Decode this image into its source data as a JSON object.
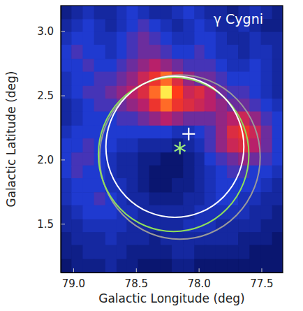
{
  "chart_data": {
    "type": "heatmap",
    "title": "γ Cygni",
    "xlabel": "Galactic Longitude (deg)",
    "ylabel": "Galactic Latitude (deg)",
    "xlim": [
      79.1,
      77.33
    ],
    "ylim": [
      1.12,
      3.2
    ],
    "xticks": [
      {
        "value": 79,
        "label": "79.0"
      },
      {
        "value": 78.5,
        "label": "78.5"
      },
      {
        "value": 78,
        "label": "78.0"
      },
      {
        "value": 77.5,
        "label": "77.5"
      }
    ],
    "yticks": [
      {
        "value": 1.5,
        "label": "1.5"
      },
      {
        "value": 2,
        "label": "2.0"
      },
      {
        "value": 2.5,
        "label": "2.5"
      },
      {
        "value": 3,
        "label": "3.0"
      }
    ],
    "cells": {
      "x": [
        79.06,
        78.97,
        78.88,
        78.79,
        78.7,
        78.61,
        78.53,
        78.44,
        78.35,
        78.26,
        78.17,
        78.08,
        77.99,
        77.91,
        77.82,
        77.73,
        77.64,
        77.55,
        77.46,
        77.37
      ],
      "y": [
        3.15,
        3.04,
        2.94,
        2.84,
        2.73,
        2.63,
        2.52,
        2.42,
        2.32,
        2.21,
        2.11,
        2.0,
        1.9,
        1.8,
        1.69,
        1.59,
        1.48,
        1.38,
        1.28,
        1.17
      ],
      "zlim": [
        0,
        1
      ],
      "z": [
        [
          0.25,
          0.3,
          0.35,
          0.3,
          0.3,
          0.35,
          0.4,
          0.35,
          0.3,
          0.3,
          0.35,
          0.4,
          0.35,
          0.3,
          0.3,
          0.25,
          0.3,
          0.35,
          0.3,
          0.25
        ],
        [
          0.3,
          0.35,
          0.4,
          0.35,
          0.3,
          0.35,
          0.4,
          0.45,
          0.4,
          0.35,
          0.3,
          0.35,
          0.4,
          0.35,
          0.3,
          0.3,
          0.35,
          0.3,
          0.25,
          0.25
        ],
        [
          0.35,
          0.4,
          0.4,
          0.35,
          0.35,
          0.4,
          0.45,
          0.5,
          0.45,
          0.4,
          0.35,
          0.35,
          0.4,
          0.4,
          0.35,
          0.3,
          0.3,
          0.35,
          0.3,
          0.3
        ],
        [
          0.4,
          0.45,
          0.4,
          0.4,
          0.35,
          0.4,
          0.45,
          0.5,
          0.5,
          0.45,
          0.4,
          0.4,
          0.45,
          0.4,
          0.35,
          0.35,
          0.3,
          0.35,
          0.35,
          0.3
        ],
        [
          0.4,
          0.4,
          0.45,
          0.4,
          0.4,
          0.45,
          0.5,
          0.55,
          0.6,
          0.55,
          0.5,
          0.45,
          0.45,
          0.45,
          0.4,
          0.35,
          0.35,
          0.4,
          0.35,
          0.3
        ],
        [
          0.35,
          0.4,
          0.4,
          0.45,
          0.45,
          0.5,
          0.55,
          0.65,
          0.75,
          0.85,
          0.7,
          0.55,
          0.5,
          0.5,
          0.45,
          0.4,
          0.4,
          0.4,
          0.35,
          0.3
        ],
        [
          0.35,
          0.4,
          0.45,
          0.45,
          0.5,
          0.55,
          0.6,
          0.7,
          0.85,
          0.98,
          0.8,
          0.65,
          0.7,
          0.6,
          0.5,
          0.45,
          0.45,
          0.4,
          0.35,
          0.3
        ],
        [
          0.3,
          0.35,
          0.4,
          0.45,
          0.45,
          0.5,
          0.55,
          0.6,
          0.75,
          0.85,
          0.75,
          0.7,
          0.65,
          0.6,
          0.55,
          0.5,
          0.5,
          0.45,
          0.4,
          0.35
        ],
        [
          0.3,
          0.35,
          0.4,
          0.4,
          0.4,
          0.45,
          0.45,
          0.5,
          0.55,
          0.6,
          0.55,
          0.5,
          0.5,
          0.5,
          0.55,
          0.6,
          0.65,
          0.55,
          0.45,
          0.4
        ],
        [
          0.35,
          0.4,
          0.4,
          0.4,
          0.4,
          0.4,
          0.4,
          0.4,
          0.4,
          0.4,
          0.35,
          0.35,
          0.4,
          0.45,
          0.55,
          0.7,
          0.75,
          0.65,
          0.5,
          0.4
        ],
        [
          0.4,
          0.4,
          0.45,
          0.4,
          0.4,
          0.35,
          0.35,
          0.3,
          0.3,
          0.3,
          0.25,
          0.3,
          0.35,
          0.45,
          0.55,
          0.65,
          0.7,
          0.6,
          0.5,
          0.4
        ],
        [
          0.4,
          0.45,
          0.45,
          0.4,
          0.35,
          0.3,
          0.3,
          0.25,
          0.25,
          0.2,
          0.2,
          0.25,
          0.3,
          0.4,
          0.45,
          0.5,
          0.55,
          0.5,
          0.45,
          0.4
        ],
        [
          0.4,
          0.45,
          0.4,
          0.4,
          0.35,
          0.3,
          0.3,
          0.25,
          0.2,
          0.2,
          0.2,
          0.25,
          0.3,
          0.35,
          0.4,
          0.45,
          0.45,
          0.4,
          0.4,
          0.35
        ],
        [
          0.35,
          0.4,
          0.4,
          0.4,
          0.35,
          0.35,
          0.3,
          0.25,
          0.2,
          0.2,
          0.25,
          0.25,
          0.3,
          0.35,
          0.4,
          0.4,
          0.4,
          0.4,
          0.35,
          0.3
        ],
        [
          0.35,
          0.4,
          0.4,
          0.45,
          0.4,
          0.35,
          0.3,
          0.3,
          0.25,
          0.25,
          0.25,
          0.3,
          0.3,
          0.35,
          0.4,
          0.4,
          0.35,
          0.35,
          0.3,
          0.3
        ],
        [
          0.3,
          0.35,
          0.4,
          0.4,
          0.4,
          0.35,
          0.35,
          0.3,
          0.3,
          0.3,
          0.3,
          0.3,
          0.35,
          0.35,
          0.35,
          0.35,
          0.35,
          0.3,
          0.3,
          0.25
        ],
        [
          0.3,
          0.3,
          0.35,
          0.35,
          0.35,
          0.35,
          0.3,
          0.3,
          0.3,
          0.3,
          0.3,
          0.35,
          0.35,
          0.35,
          0.3,
          0.3,
          0.3,
          0.3,
          0.25,
          0.25
        ],
        [
          0.25,
          0.3,
          0.3,
          0.3,
          0.35,
          0.3,
          0.3,
          0.3,
          0.25,
          0.3,
          0.3,
          0.3,
          0.3,
          0.3,
          0.3,
          0.3,
          0.25,
          0.25,
          0.25,
          0.2
        ],
        [
          0.25,
          0.25,
          0.3,
          0.3,
          0.3,
          0.3,
          0.25,
          0.25,
          0.25,
          0.25,
          0.3,
          0.3,
          0.25,
          0.25,
          0.25,
          0.25,
          0.25,
          0.2,
          0.2,
          0.2
        ],
        [
          0.2,
          0.25,
          0.25,
          0.25,
          0.3,
          0.25,
          0.25,
          0.2,
          0.2,
          0.2,
          0.25,
          0.25,
          0.2,
          0.2,
          0.2,
          0.2,
          0.2,
          0.2,
          0.2,
          0.2
        ]
      ]
    },
    "circles": [
      {
        "x": 78.15,
        "y": 2.02,
        "r": 0.64,
        "color": "#9a9a9a"
      },
      {
        "x": 78.2,
        "y": 2.04,
        "r": 0.6,
        "color": "#8fe05a"
      },
      {
        "x": 78.19,
        "y": 2.1,
        "r": 0.55,
        "color": "#ffffff"
      }
    ],
    "markers": [
      {
        "x": 78.08,
        "y": 2.2,
        "marker": "plus",
        "color": "#ffffff"
      },
      {
        "x": 78.15,
        "y": 2.09,
        "marker": "asterisk",
        "color": "#9ff07a"
      }
    ]
  }
}
